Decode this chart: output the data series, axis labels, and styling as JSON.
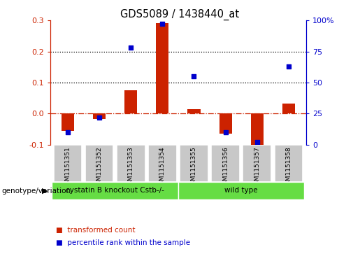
{
  "title": "GDS5089 / 1438440_at",
  "samples": [
    "GSM1151351",
    "GSM1151352",
    "GSM1151353",
    "GSM1151354",
    "GSM1151355",
    "GSM1151356",
    "GSM1151357",
    "GSM1151358"
  ],
  "transformed_count": [
    -0.055,
    -0.018,
    0.075,
    0.292,
    0.015,
    -0.065,
    -0.105,
    0.033
  ],
  "percentile_rank_pct": [
    10,
    22,
    78,
    97,
    55,
    10,
    2,
    63
  ],
  "bar_color": "#cc2200",
  "dot_color": "#0000cc",
  "ylim_left": [
    -0.1,
    0.3
  ],
  "ylim_right": [
    0,
    100
  ],
  "yticks_left": [
    -0.1,
    0.0,
    0.1,
    0.2,
    0.3
  ],
  "yticks_right": [
    0,
    25,
    50,
    75,
    100
  ],
  "hlines": [
    0.1,
    0.2
  ],
  "zero_line": 0.0,
  "group1_label": "cystatin B knockout Cstb-/-",
  "group2_label": "wild type",
  "group1_count": 4,
  "group_color": "#66dd44",
  "genotype_label": "genotype/variation",
  "legend_items": [
    {
      "color": "#cc2200",
      "label": "transformed count"
    },
    {
      "color": "#0000cc",
      "label": "percentile rank within the sample"
    }
  ],
  "tick_bg": "#c8c8c8"
}
